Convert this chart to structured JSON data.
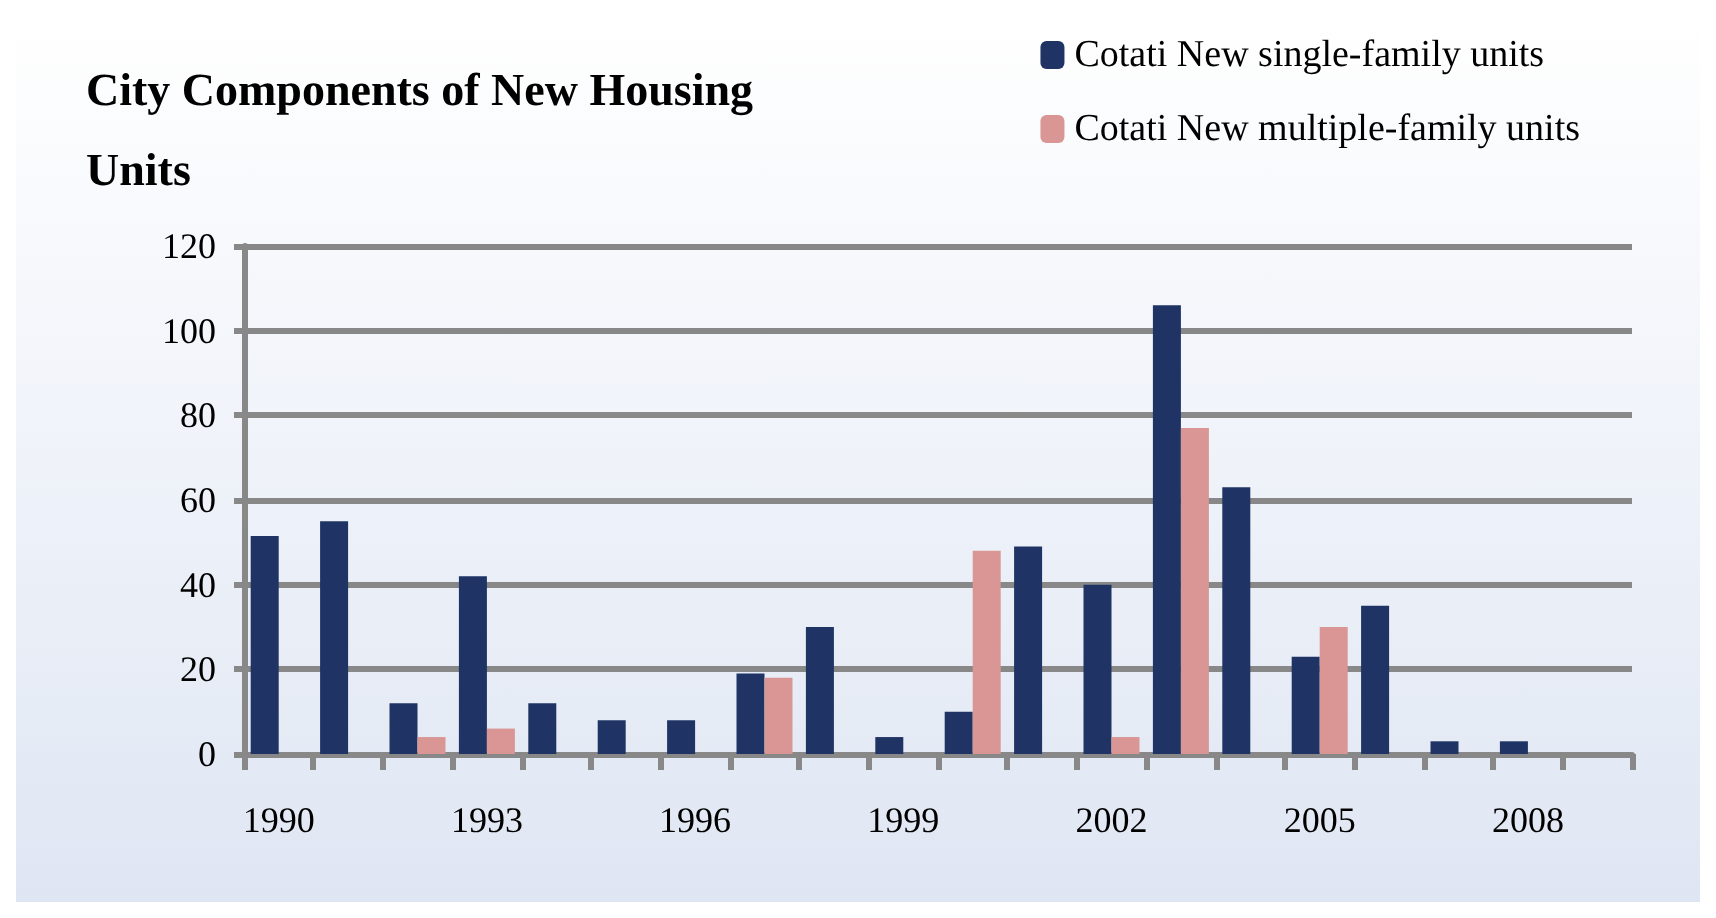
{
  "chart_data": {
    "type": "bar",
    "title": "City Components of New Housing Units",
    "categories": [
      "1990",
      null,
      null,
      "1993",
      null,
      null,
      "1996",
      null,
      null,
      "1999",
      null,
      null,
      "2002",
      null,
      null,
      "2005",
      null,
      null,
      "2008",
      null
    ],
    "series": [
      {
        "name": "Cotati New single-family units",
        "color": "#1f3464",
        "values": [
          51.5,
          55,
          12,
          42,
          12,
          8,
          8,
          19,
          30,
          4,
          10,
          49,
          40,
          106,
          63,
          23,
          35,
          3,
          3,
          null
        ]
      },
      {
        "name": "Cotati New multiple-family units",
        "color": "#d99694",
        "values": [
          null,
          null,
          4,
          6,
          null,
          null,
          null,
          18,
          null,
          null,
          48,
          null,
          4,
          77,
          null,
          30,
          null,
          null,
          null,
          null
        ]
      }
    ],
    "ylim": [
      0,
      120
    ],
    "yticks": [
      0,
      20,
      40,
      60,
      80,
      100,
      120
    ],
    "grid": "y",
    "legend": "top right"
  }
}
